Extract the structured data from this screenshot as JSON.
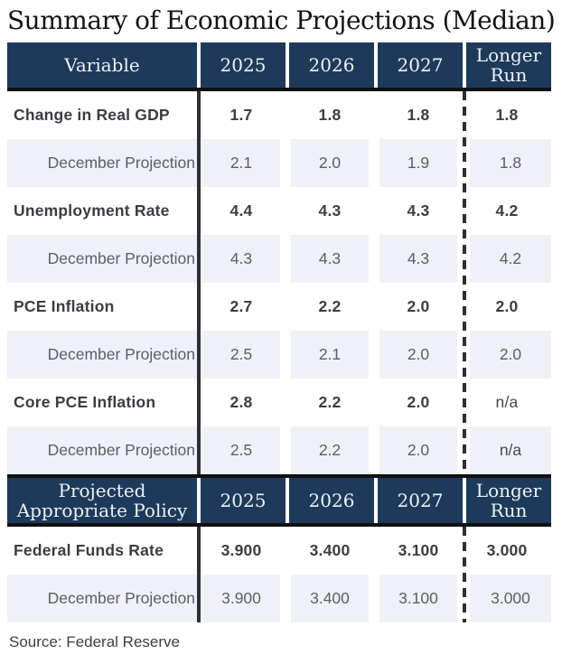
{
  "title": "Summary of Economic Projections (Median)",
  "source": "Source: Federal Reserve",
  "colors": {
    "header_bg": "#1e3a5a",
    "header_text": "#eef1f4",
    "alt_row_bg": "#eef2f6",
    "divider_line": "#2c2f33",
    "section_border": "#101010"
  },
  "chart_data": {
    "type": "table",
    "title": "Summary of Economic Projections (Median)",
    "sections": [
      {
        "header": [
          "Variable",
          "2025",
          "2026",
          "2027",
          "Longer Run"
        ],
        "rows": [
          {
            "label": "Change in Real GDP",
            "bold": true,
            "values": [
              "1.7",
              "1.8",
              "1.8",
              "1.8"
            ]
          },
          {
            "label": "December Projection",
            "bold": false,
            "values": [
              "2.1",
              "2.0",
              "1.9",
              "1.8"
            ]
          },
          {
            "label": "Unemployment Rate",
            "bold": true,
            "values": [
              "4.4",
              "4.3",
              "4.3",
              "4.2"
            ]
          },
          {
            "label": "December Projection",
            "bold": false,
            "values": [
              "4.3",
              "4.3",
              "4.3",
              "4.2"
            ]
          },
          {
            "label": "PCE Inflation",
            "bold": true,
            "values": [
              "2.7",
              "2.2",
              "2.0",
              "2.0"
            ]
          },
          {
            "label": "December Projection",
            "bold": false,
            "values": [
              "2.5",
              "2.1",
              "2.0",
              "2.0"
            ]
          },
          {
            "label": "Core PCE Inflation",
            "bold": true,
            "values": [
              "2.8",
              "2.2",
              "2.0",
              "n/a"
            ]
          },
          {
            "label": "December Projection",
            "bold": false,
            "values": [
              "2.5",
              "2.2",
              "2.0",
              "n/a"
            ]
          }
        ]
      },
      {
        "header": [
          "Projected Appropriate Policy",
          "2025",
          "2026",
          "2027",
          "Longer Run"
        ],
        "rows": [
          {
            "label": "Federal Funds Rate",
            "bold": true,
            "values": [
              "3.900",
              "3.400",
              "3.100",
              "3.000"
            ]
          },
          {
            "label": "December Projection",
            "bold": false,
            "values": [
              "3.900",
              "3.400",
              "3.100",
              "3.000"
            ]
          }
        ]
      }
    ]
  }
}
